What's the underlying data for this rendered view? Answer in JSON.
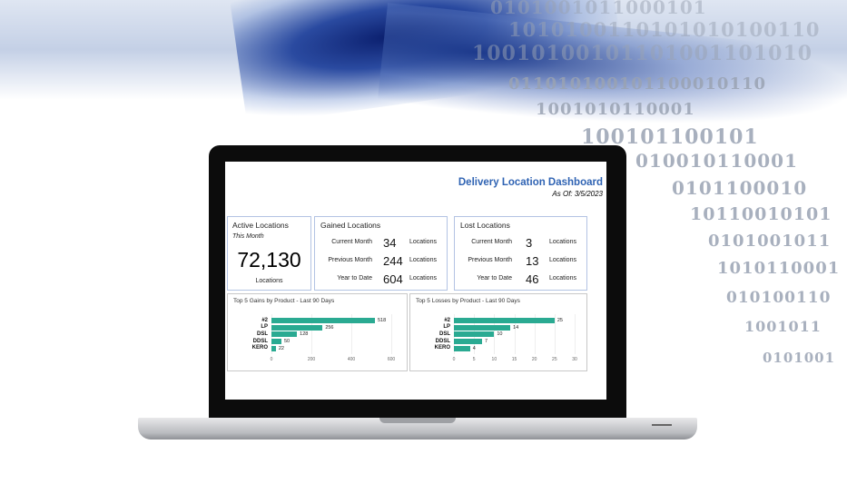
{
  "background": {
    "binary": [
      "0101001011000101",
      "1010100110101010100110",
      "10010100101101001101010",
      "011010100101100010110",
      "1001010110001",
      "100101100101",
      "010010110001",
      "0101100010",
      "10110010101",
      "0101001011",
      "1010110001",
      "010100110",
      "1001011",
      "0101001"
    ]
  },
  "dashboard": {
    "title": "Delivery Location Dashboard",
    "as_of": "As Of: 3/5/2023",
    "active": {
      "title": "Active Locations",
      "subtitle": "This Month",
      "value": "72,130",
      "unit": "Locations"
    },
    "gained": {
      "title": "Gained Locations",
      "rows": [
        {
          "label": "Current Month",
          "value": "34",
          "unit": "Locations"
        },
        {
          "label": "Previous Month",
          "value": "244",
          "unit": "Locations"
        },
        {
          "label": "Year to Date",
          "value": "604",
          "unit": "Locations"
        }
      ]
    },
    "lost": {
      "title": "Lost Locations",
      "rows": [
        {
          "label": "Current Month",
          "value": "3",
          "unit": "Locations"
        },
        {
          "label": "Previous Month",
          "value": "13",
          "unit": "Locations"
        },
        {
          "label": "Year to Date",
          "value": "46",
          "unit": "Locations"
        }
      ]
    }
  },
  "colors": {
    "accent": "#2f63b3",
    "bar": "#2aaa92",
    "card_border": "#b3c3e3"
  },
  "chart_data": [
    {
      "type": "bar",
      "orientation": "horizontal",
      "title": "Top 5 Gains by Product - Last 90 Days",
      "categories": [
        "#2",
        "LP",
        "DSL",
        "DDSL",
        "KERO"
      ],
      "values": [
        518,
        256,
        128,
        50,
        22
      ],
      "xlim": [
        0,
        600
      ],
      "ticks": [
        "0",
        "200",
        "400",
        "600"
      ],
      "grid": true
    },
    {
      "type": "bar",
      "orientation": "horizontal",
      "title": "Top 5 Losses by Product - Last 90 Days",
      "categories": [
        "#2",
        "LP",
        "DSL",
        "DDSL",
        "KERO"
      ],
      "values": [
        25,
        14,
        10,
        7,
        4
      ],
      "xlim": [
        0,
        30
      ],
      "ticks": [
        "0",
        "5",
        "10",
        "15",
        "20",
        "25",
        "30"
      ],
      "grid": true
    }
  ]
}
